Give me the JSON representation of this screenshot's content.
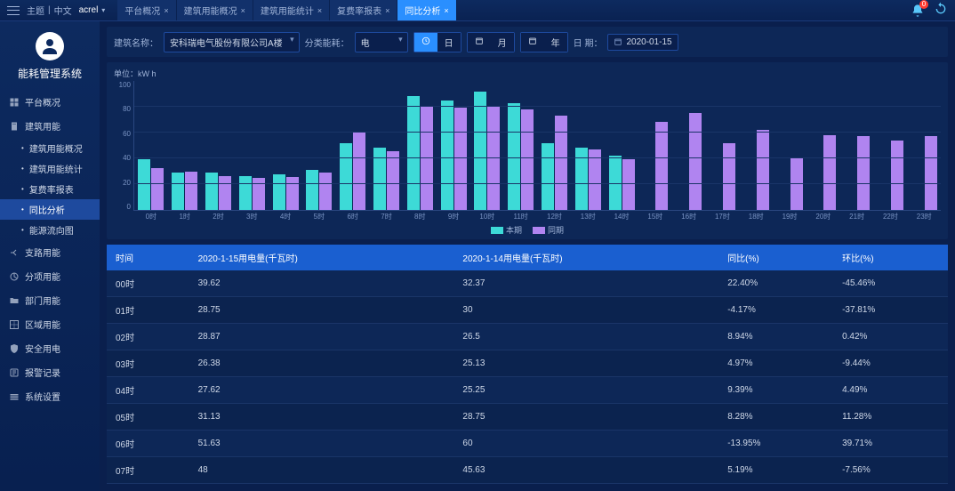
{
  "topbar": {
    "theme_label": "主题",
    "lang": "中文",
    "brand": "acrel",
    "tabs": [
      {
        "label": "平台概况",
        "active": false
      },
      {
        "label": "建筑用能概况",
        "active": false
      },
      {
        "label": "建筑用能统计",
        "active": false
      },
      {
        "label": "复费率报表",
        "active": false
      },
      {
        "label": "同比分析",
        "active": true
      }
    ],
    "bell_badge": "0"
  },
  "sidebar": {
    "title": "能耗管理系统",
    "items": [
      {
        "label": "平台概况",
        "icon": "dashboard"
      },
      {
        "label": "建筑用能",
        "icon": "building",
        "children": [
          {
            "label": "建筑用能概况",
            "active": false
          },
          {
            "label": "建筑用能统计",
            "active": false
          },
          {
            "label": "复费率报表",
            "active": false
          },
          {
            "label": "同比分析",
            "active": true
          },
          {
            "label": "能源流向图",
            "active": false
          }
        ]
      },
      {
        "label": "支路用能",
        "icon": "branch"
      },
      {
        "label": "分项用能",
        "icon": "category"
      },
      {
        "label": "部门用能",
        "icon": "folder"
      },
      {
        "label": "区域用能",
        "icon": "area"
      },
      {
        "label": "安全用电",
        "icon": "shield"
      },
      {
        "label": "报警记录",
        "icon": "alarm"
      },
      {
        "label": "系统设置",
        "icon": "settings"
      }
    ]
  },
  "filter": {
    "building_label": "建筑名称：",
    "building_value": "安科瑞电气股份有限公司A楼",
    "type_label": "分类能耗：",
    "type_value": "电",
    "gran": [
      {
        "label": "日",
        "icon": "clock",
        "active": true
      },
      {
        "label": "月",
        "icon": "cal",
        "active": false
      },
      {
        "label": "年",
        "icon": "cal",
        "active": false
      }
    ],
    "gran_icon_btn": "日",
    "date_label": "日 期：",
    "date_value": "2020-01-15"
  },
  "chart": {
    "unit": "单位：kW h",
    "type": "bar",
    "ymax": 100,
    "ytick_step": 20,
    "yticks": [
      100,
      80,
      60,
      40,
      20,
      0
    ],
    "categories": [
      "0时",
      "1时",
      "2时",
      "3时",
      "4时",
      "5时",
      "6时",
      "7时",
      "8时",
      "9时",
      "10时",
      "11时",
      "12时",
      "13时",
      "14时",
      "15时",
      "16时",
      "17时",
      "18时",
      "19时",
      "20时",
      "21时",
      "22时",
      "23时"
    ],
    "series": [
      {
        "name": "本期",
        "color": "#3ddad7",
        "values": [
          39.62,
          28.75,
          28.87,
          26.38,
          27.62,
          31.13,
          51.63,
          48,
          88,
          85,
          92,
          83,
          52,
          48,
          42,
          null,
          null,
          null,
          null,
          null,
          null,
          null,
          null,
          null
        ]
      },
      {
        "name": "同期",
        "color": "#b084f0",
        "values": [
          32.37,
          30,
          26.5,
          25.13,
          25.25,
          28.75,
          60,
          45.63,
          80,
          79,
          80,
          78,
          73,
          47,
          39,
          68,
          75,
          52,
          62,
          41,
          58,
          57,
          54,
          57
        ]
      }
    ],
    "legend": [
      "本期",
      "同期"
    ],
    "background_color": "#0d2757",
    "grid_color": "#1a3568"
  },
  "table": {
    "columns": [
      "时间",
      "2020-1-15用电量(千瓦时)",
      "2020-1-14用电量(千瓦时)",
      "同比(%)",
      "环比(%)"
    ],
    "rows": [
      [
        "00时",
        "39.62",
        "32.37",
        "22.40%",
        "-45.46%"
      ],
      [
        "01时",
        "28.75",
        "30",
        "-4.17%",
        "-37.81%"
      ],
      [
        "02时",
        "28.87",
        "26.5",
        "8.94%",
        "0.42%"
      ],
      [
        "03时",
        "26.38",
        "25.13",
        "4.97%",
        "-9.44%"
      ],
      [
        "04时",
        "27.62",
        "25.25",
        "9.39%",
        "4.49%"
      ],
      [
        "05时",
        "31.13",
        "28.75",
        "8.28%",
        "11.28%"
      ],
      [
        "06时",
        "51.63",
        "60",
        "-13.95%",
        "39.71%"
      ],
      [
        "07时",
        "48",
        "45.63",
        "5.19%",
        "-7.56%"
      ]
    ]
  }
}
